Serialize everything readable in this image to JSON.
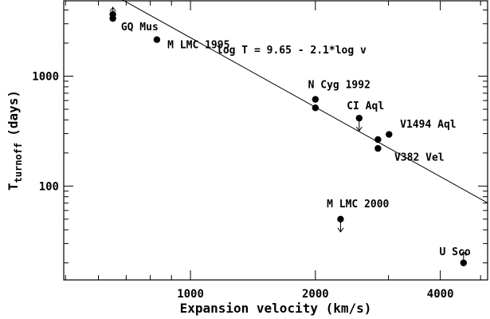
{
  "chart_data": {
    "type": "scatter",
    "title": "",
    "xlabel": "Expansion velocity (km/s)",
    "ylabel": {
      "main": "T",
      "subscript": "turnoff",
      "unit": "(days)"
    },
    "x_scale": "log",
    "y_scale": "log",
    "xlim": [
      495,
      5200
    ],
    "ylim": [
      14,
      4850
    ],
    "x_ticks": [
      {
        "value": 1000,
        "label": "1000"
      },
      {
        "value": 2000,
        "label": "2000"
      },
      {
        "value": 4000,
        "label": "4000"
      }
    ],
    "y_ticks": [
      {
        "value": 100,
        "label": "100"
      },
      {
        "value": 1000,
        "label": "1000"
      }
    ],
    "fit_line": {
      "label": "log T = 9.65 - 2.1*log v",
      "intercept": 9.65,
      "slope": -2.1
    },
    "points": [
      {
        "x": 650,
        "y": 3650,
        "limit": ""
      },
      {
        "x": 650,
        "y": 3350,
        "limit": "lower"
      },
      {
        "x": 830,
        "y": 2150,
        "limit": ""
      },
      {
        "x": 2000,
        "y": 615,
        "limit": ""
      },
      {
        "x": 2000,
        "y": 515,
        "limit": ""
      },
      {
        "x": 2550,
        "y": 415,
        "limit": "upper"
      },
      {
        "x": 2830,
        "y": 265,
        "limit": ""
      },
      {
        "x": 2830,
        "y": 220,
        "limit": ""
      },
      {
        "x": 3010,
        "y": 295,
        "limit": ""
      },
      {
        "x": 2300,
        "y": 50,
        "limit": "upper"
      },
      {
        "x": 4550,
        "y": 20,
        "limit": "lower"
      }
    ],
    "annotations": [
      {
        "text": "GQ Mus",
        "x": 680,
        "y": 2620
      },
      {
        "text": "M LMC 1995",
        "x": 880,
        "y": 1800
      },
      {
        "text": "N Cyg 1992",
        "x": 1920,
        "y": 780
      },
      {
        "text": "CI Aql",
        "x": 2380,
        "y": 500
      },
      {
        "text": "V1494 Aql",
        "x": 3200,
        "y": 340
      },
      {
        "text": "V382 Vel",
        "x": 3100,
        "y": 170
      },
      {
        "text": "M LMC 2000",
        "x": 2130,
        "y": 64
      },
      {
        "text": "U Sco",
        "x": 3980,
        "y": 23.5
      }
    ],
    "grid": false,
    "legend": "none"
  }
}
